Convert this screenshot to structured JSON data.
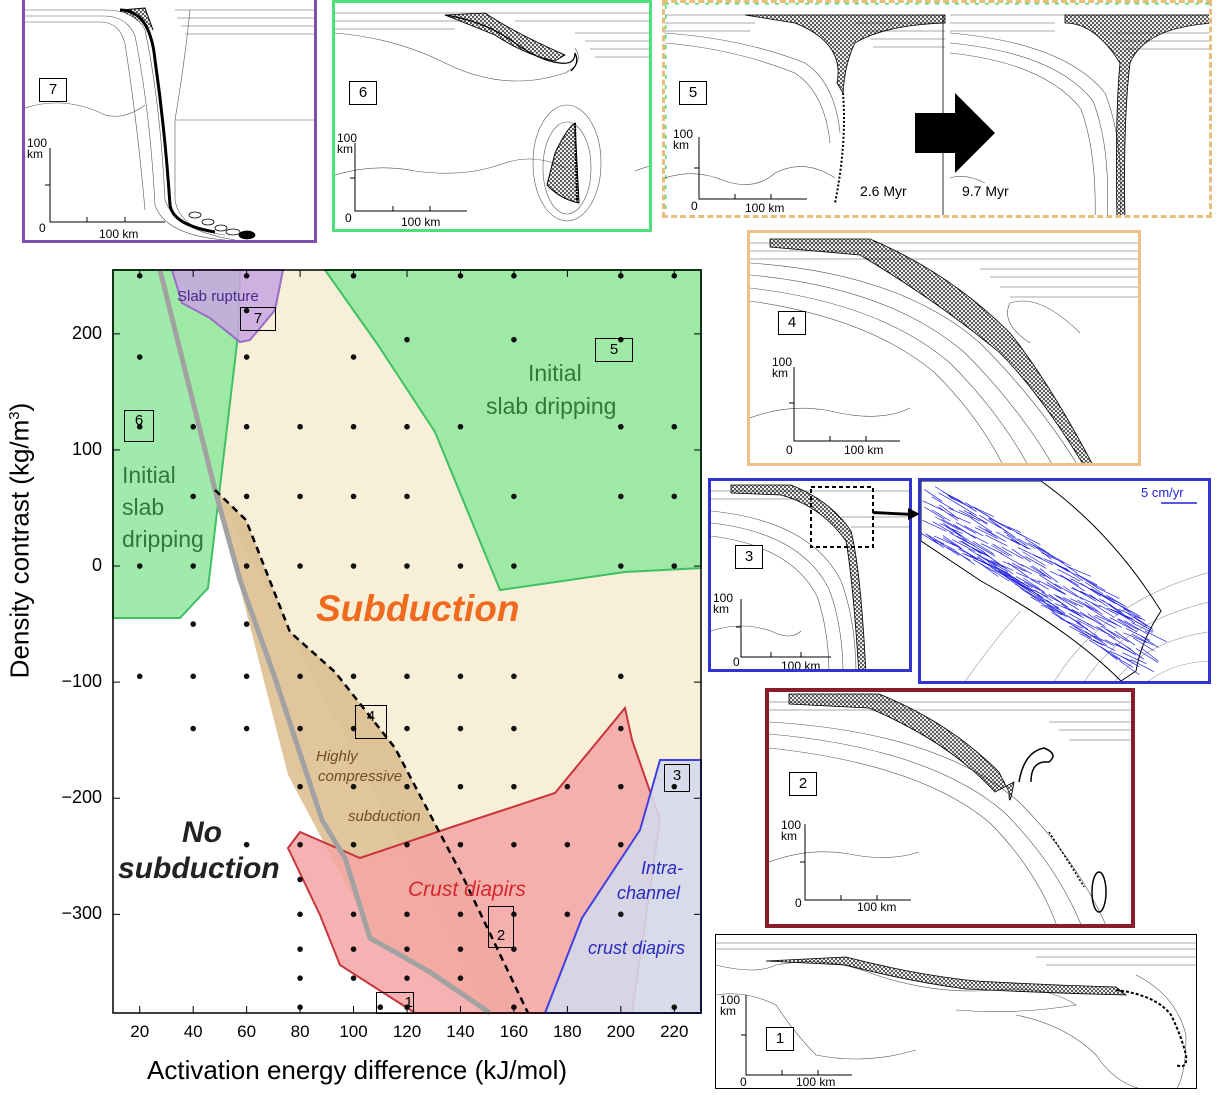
{
  "chart_data": {
    "type": "scatter",
    "xlabel": "Activation energy difference (kJ/mol)",
    "ylabel": "Density contrast (kg/m³)",
    "xlim": [
      10,
      230
    ],
    "ylim": [
      -385,
      255
    ],
    "xticks": [
      20,
      40,
      60,
      80,
      100,
      120,
      140,
      160,
      180,
      200,
      220
    ],
    "yticks": [
      200,
      100,
      0,
      -100,
      -200,
      -300
    ],
    "points": [
      [
        20,
        250
      ],
      [
        60,
        250
      ],
      [
        100,
        250
      ],
      [
        140,
        250
      ],
      [
        160,
        250
      ],
      [
        200,
        250
      ],
      [
        220,
        250
      ],
      [
        20,
        180
      ],
      [
        60,
        180
      ],
      [
        100,
        180
      ],
      [
        20,
        120
      ],
      [
        40,
        120
      ],
      [
        60,
        120
      ],
      [
        80,
        120
      ],
      [
        100,
        120
      ],
      [
        120,
        120
      ],
      [
        140,
        120
      ],
      [
        200,
        120
      ],
      [
        220,
        120
      ],
      [
        40,
        60
      ],
      [
        60,
        60
      ],
      [
        80,
        60
      ],
      [
        100,
        60
      ],
      [
        120,
        60
      ],
      [
        160,
        60
      ],
      [
        200,
        60
      ],
      [
        220,
        60
      ],
      [
        20,
        0
      ],
      [
        40,
        0
      ],
      [
        60,
        0
      ],
      [
        80,
        0
      ],
      [
        100,
        0
      ],
      [
        120,
        0
      ],
      [
        140,
        0
      ],
      [
        160,
        0
      ],
      [
        200,
        0
      ],
      [
        220,
        0
      ],
      [
        40,
        -50
      ],
      [
        60,
        -50
      ],
      [
        40,
        -95
      ],
      [
        60,
        -95
      ],
      [
        80,
        -95
      ],
      [
        100,
        -95
      ],
      [
        120,
        -95
      ],
      [
        140,
        -95
      ],
      [
        160,
        -95
      ],
      [
        200,
        -95
      ],
      [
        20,
        -95
      ],
      [
        40,
        -140
      ],
      [
        60,
        -140
      ],
      [
        80,
        -140
      ],
      [
        100,
        -140
      ],
      [
        120,
        -140
      ],
      [
        140,
        -140
      ],
      [
        160,
        -140
      ],
      [
        200,
        -140
      ],
      [
        80,
        -190
      ],
      [
        100,
        -190
      ],
      [
        120,
        -190
      ],
      [
        140,
        -190
      ],
      [
        160,
        -190
      ],
      [
        180,
        -190
      ],
      [
        200,
        -190
      ],
      [
        220,
        -190
      ],
      [
        60,
        -240
      ],
      [
        80,
        -240
      ],
      [
        100,
        -240
      ],
      [
        120,
        -240
      ],
      [
        140,
        -240
      ],
      [
        160,
        -240
      ],
      [
        180,
        -240
      ],
      [
        200,
        -240
      ],
      [
        80,
        -270
      ],
      [
        80,
        -300
      ],
      [
        100,
        -300
      ],
      [
        120,
        -300
      ],
      [
        140,
        -300
      ],
      [
        160,
        -300
      ],
      [
        180,
        -300
      ],
      [
        200,
        -300
      ],
      [
        80,
        -330
      ],
      [
        100,
        -330
      ],
      [
        120,
        -330
      ],
      [
        140,
        -330
      ],
      [
        160,
        -330
      ],
      [
        80,
        -355
      ],
      [
        100,
        -355
      ],
      [
        120,
        -355
      ],
      [
        140,
        -355
      ],
      [
        80,
        -380
      ],
      [
        110,
        -380
      ],
      [
        120,
        -380
      ],
      [
        160,
        -380
      ],
      [
        220,
        -380
      ],
      [
        60,
        220
      ],
      [
        120,
        195
      ],
      [
        160,
        195
      ],
      [
        200,
        195
      ]
    ],
    "regions": [
      {
        "name": "Slab rupture",
        "color": "#c9a8e0"
      },
      {
        "name": "Initial slab dripping",
        "color": "#7ee08e"
      },
      {
        "name": "Subduction",
        "color": "#f7eed6"
      },
      {
        "name": "Highly compressive subduction",
        "color": "#d9b98a"
      },
      {
        "name": "Crust diapirs",
        "color": "#f2a1a1"
      },
      {
        "name": "Intra-channel crust diapirs",
        "color": "#d2d6ea"
      },
      {
        "name": "No subduction",
        "color": "#ffffff"
      }
    ],
    "boundary_colors": {
      "gray_line": "#a0a0a0",
      "dashed_line": "#000000"
    }
  },
  "plot": {
    "xlabel": "Activation energy difference (kJ/mol)",
    "ylabel": "Density contrast (kg/m",
    "ylabel_sup": "3",
    "ylabel_end": ")",
    "xticks": [
      "20",
      "40",
      "60",
      "80",
      "100",
      "120",
      "140",
      "160",
      "180",
      "200",
      "220"
    ],
    "yticks": [
      "200",
      "100",
      "0",
      "−100",
      "−200",
      "−300"
    ],
    "labels": {
      "slab_rupture": "Slab rupture",
      "initial_right_1": "Initial",
      "initial_right_2": "slab dripping",
      "initial_left_1": "Initial",
      "initial_left_2": "slab",
      "initial_left_3": "dripping",
      "subduction": "Subduction",
      "highly_1": "Highly",
      "highly_2": "compressive",
      "highly_3": "subduction",
      "no_1": "No",
      "no_2": "subduction",
      "crust_diapirs": "Crust diapirs",
      "intra_1": "Intra-",
      "intra_2": "channel",
      "intra_3": "crust diapirs"
    },
    "markers": [
      "1",
      "2",
      "3",
      "4",
      "5",
      "6",
      "7"
    ]
  },
  "panels": {
    "p7": {
      "num": "7",
      "scale_v": "100\nkm",
      "scale_zero": "0",
      "scale_h": "100 km",
      "border": "#7f4fb0"
    },
    "p6": {
      "num": "6",
      "scale_v": "100\nkm",
      "scale_zero": "0",
      "scale_h": "100 km",
      "border": "#4fe07a"
    },
    "p5": {
      "num": "5",
      "scale_v": "100\nkm",
      "scale_zero": "0",
      "scale_h": "100 km",
      "t1": "2.6 Myr",
      "t2": "9.7 Myr"
    },
    "p4": {
      "num": "4",
      "scale_v": "100\nkm",
      "scale_zero": "0",
      "scale_h": "100 km",
      "border": "#f0c08a"
    },
    "p3": {
      "num": "3",
      "scale_v": "100\nkm",
      "scale_zero": "0",
      "scale_h": "100 km",
      "border": "#3333d0"
    },
    "p3zoom": {
      "velocity": "5 cm/yr"
    },
    "p2": {
      "num": "2",
      "scale_v": "100\nkm",
      "scale_zero": "0",
      "scale_h": "100 km",
      "border": "#8b1a2a"
    },
    "p1": {
      "num": "1",
      "scale_v": "100\nkm",
      "scale_zero": "0",
      "scale_h": "100 km"
    }
  }
}
